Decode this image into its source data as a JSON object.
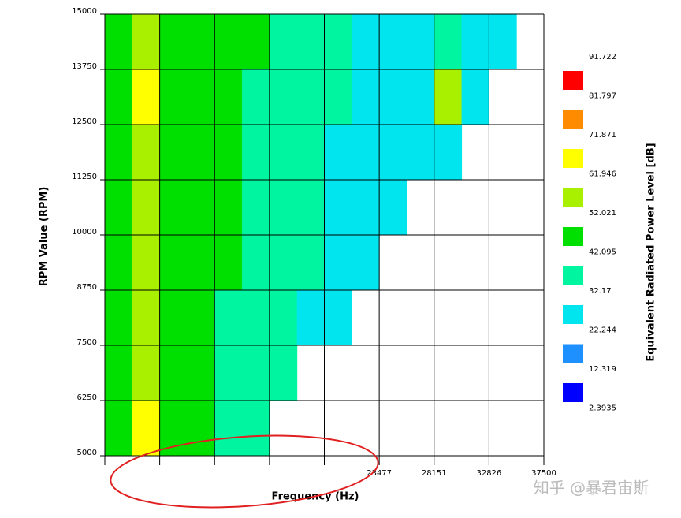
{
  "chart_data": {
    "type": "heatmap",
    "xlabel": "Frequency (Hz)",
    "ylabel": "RPM Value (RPM)",
    "colorbar_label": "Equivalent Radiated Power Level [dB]",
    "watermark": "知乎 @暴君宙斯",
    "xlim": [
      105,
      37500
    ],
    "ylim": [
      5000,
      15000
    ],
    "xticks": [
      {
        "value": 105,
        "label": null
      },
      {
        "value": 4779,
        "label": null
      },
      {
        "value": 9454,
        "label": null
      },
      {
        "value": 14128,
        "label": null
      },
      {
        "value": 18803,
        "label": null
      },
      23477,
      28151,
      32826,
      37500
    ],
    "yticks": [
      5000,
      6250,
      7500,
      8750,
      10000,
      11250,
      12500,
      13750,
      15000
    ],
    "x": [
      105,
      2442,
      4779,
      7117,
      9454,
      11791,
      14128,
      16466,
      18803,
      21140,
      23477,
      25815,
      28151,
      30489,
      32826,
      35163,
      37500
    ],
    "y": [
      5000,
      6250,
      7500,
      8750,
      10000,
      11250,
      12500,
      13750,
      15000
    ],
    "z": [
      [
        48,
        62,
        50,
        45,
        40,
        36,
        null,
        null,
        null,
        null,
        null,
        null,
        null,
        null,
        null,
        null
      ],
      [
        47,
        58,
        50,
        46,
        42,
        38,
        34,
        null,
        null,
        null,
        null,
        null,
        null,
        null,
        null,
        null
      ],
      [
        46,
        60,
        48,
        45,
        42,
        38,
        35,
        32,
        30,
        null,
        null,
        null,
        null,
        null,
        null,
        null
      ],
      [
        46,
        58,
        50,
        46,
        44,
        40,
        36,
        33,
        30,
        28,
        null,
        null,
        null,
        null,
        null,
        null
      ],
      [
        45,
        56,
        48,
        46,
        44,
        40,
        36,
        33,
        30,
        28,
        27,
        null,
        null,
        null,
        null,
        null
      ],
      [
        45,
        55,
        48,
        46,
        44,
        42,
        38,
        34,
        32,
        30,
        28,
        32,
        30,
        null,
        null,
        null
      ],
      [
        45,
        62,
        50,
        46,
        44,
        42,
        38,
        36,
        33,
        30,
        28,
        32,
        55,
        30,
        null,
        null
      ],
      [
        45,
        60,
        50,
        48,
        46,
        44,
        40,
        36,
        34,
        32,
        30,
        30,
        40,
        32,
        30,
        null
      ]
    ],
    "levels": [
      2.3935,
      12.319,
      22.244,
      32.17,
      42.095,
      52.021,
      61.946,
      71.871,
      81.797,
      91.722
    ],
    "colors": [
      "#0000ff",
      "#1e90ff",
      "#00e5ee",
      "#00f5a0",
      "#00e000",
      "#a8f000",
      "#ffff00",
      "#ff8c00",
      "#ff0000"
    ],
    "grid": true
  }
}
